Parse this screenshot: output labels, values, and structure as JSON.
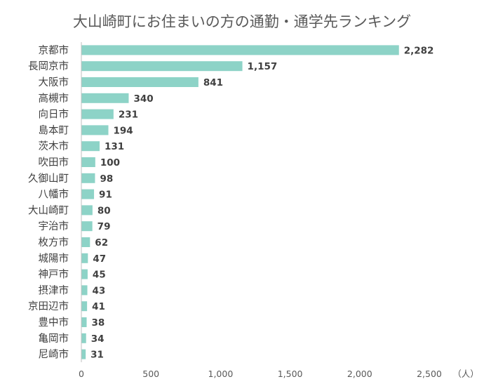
{
  "chart_data": {
    "type": "bar",
    "orientation": "horizontal",
    "title": "大山崎町にお住まいの方の通勤・通学先ランキング",
    "unit_label": "（人）",
    "categories": [
      "京都市",
      "長岡京市",
      "大阪市",
      "高槻市",
      "向日市",
      "島本町",
      "茨木市",
      "吹田市",
      "久御山町",
      "八幡市",
      "大山崎町",
      "宇治市",
      "枚方市",
      "城陽市",
      "神戸市",
      "摂津市",
      "京田辺市",
      "豊中市",
      "亀岡市",
      "尼崎市"
    ],
    "values": [
      2282,
      1157,
      841,
      340,
      231,
      194,
      131,
      100,
      98,
      91,
      80,
      79,
      62,
      47,
      45,
      43,
      41,
      38,
      34,
      31
    ],
    "value_labels": [
      "2,282",
      "1,157",
      "841",
      "340",
      "231",
      "194",
      "131",
      "100",
      "98",
      "91",
      "80",
      "79",
      "62",
      "47",
      "45",
      "43",
      "41",
      "38",
      "34",
      "31"
    ],
    "xlim": [
      0,
      2500
    ],
    "x_ticks": [
      0,
      500,
      1000,
      1500,
      2000,
      2500
    ],
    "x_tick_labels": [
      "0",
      "500",
      "1,000",
      "1,500",
      "2,000",
      "2,500"
    ],
    "grid": false,
    "bar_color": "#8dd3c7",
    "axis_color": "#bfbfbf"
  }
}
